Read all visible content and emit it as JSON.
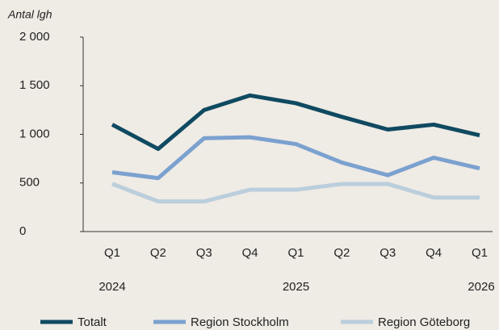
{
  "chart_data": {
    "type": "line",
    "y_label": "Antal lgh",
    "categories": [
      "Q1",
      "Q2",
      "Q3",
      "Q4",
      "Q1",
      "Q2",
      "Q3",
      "Q4",
      "Q1"
    ],
    "years": [
      "2024",
      null,
      null,
      null,
      "2025",
      null,
      null,
      null,
      "2026"
    ],
    "series": [
      {
        "name": "Totalt",
        "color": "#0f4a61",
        "values": [
          1100,
          850,
          1250,
          1400,
          1320,
          1180,
          1050,
          1100,
          990
        ]
      },
      {
        "name": "Region Stockholm",
        "color": "#7ba1cf",
        "values": [
          610,
          550,
          960,
          970,
          900,
          710,
          580,
          760,
          650
        ]
      },
      {
        "name": "Region Göteborg",
        "color": "#bacedc",
        "values": [
          490,
          310,
          310,
          430,
          430,
          490,
          490,
          350,
          350
        ]
      }
    ],
    "ylim": [
      0,
      2000
    ],
    "yticks": [
      0,
      500,
      {
        "value": 1000,
        "label": "1 000"
      },
      {
        "value": 1500,
        "label": "1 500"
      },
      {
        "value": 2000,
        "label": "2 000"
      }
    ],
    "grid": false,
    "legend": "bottom"
  }
}
